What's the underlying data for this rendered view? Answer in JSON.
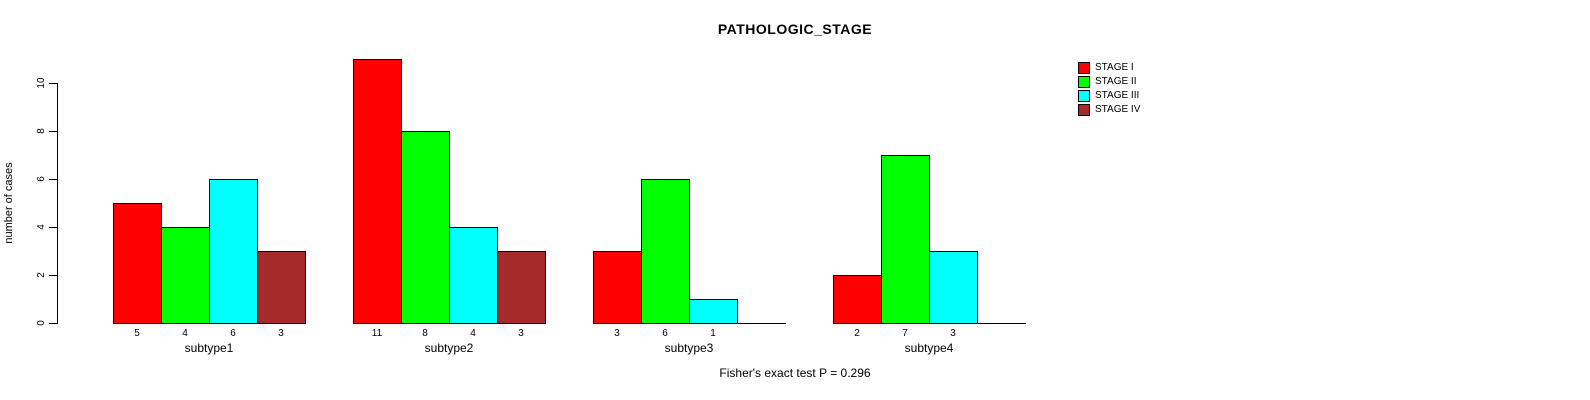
{
  "chart_data": {
    "type": "bar",
    "title": "PATHOLOGIC_STAGE",
    "ylabel": "number of cases",
    "footer": "Fisher's exact test P = 0.296",
    "categories": [
      "subtype1",
      "subtype2",
      "subtype3",
      "subtype4"
    ],
    "series": [
      {
        "name": "STAGE I",
        "color": "#ff0000",
        "values": [
          5,
          11,
          3,
          2
        ]
      },
      {
        "name": "STAGE II",
        "color": "#00ff00",
        "values": [
          4,
          8,
          6,
          7
        ]
      },
      {
        "name": "STAGE III",
        "color": "#00ffff",
        "values": [
          6,
          4,
          1,
          3
        ]
      },
      {
        "name": "STAGE IV",
        "color": "#a52a2a",
        "values": [
          3,
          3,
          0,
          0
        ]
      }
    ],
    "yticks": [
      0,
      2,
      4,
      6,
      8,
      10
    ],
    "ylim": [
      0,
      11
    ],
    "bar_value_labels": true,
    "legend_position": "top-right",
    "grid": false,
    "axis_color": "#000000",
    "background_color": "#ffffff"
  }
}
